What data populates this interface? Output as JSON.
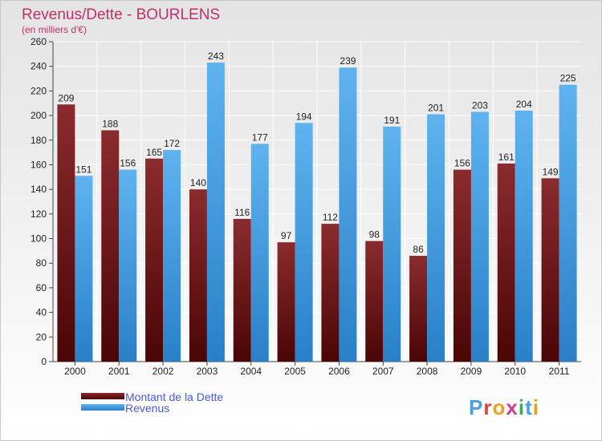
{
  "chart_data": {
    "type": "bar",
    "title": "Revenus/Dette - BOURLENS",
    "subtitle": "(en milliers d'€)",
    "categories": [
      "2000",
      "2001",
      "2002",
      "2003",
      "2004",
      "2005",
      "2006",
      "2007",
      "2008",
      "2009",
      "2010",
      "2011"
    ],
    "series": [
      {
        "name": "Montant de la Dette",
        "values": [
          209,
          188,
          165,
          140,
          116,
          97,
          112,
          98,
          86,
          156,
          161,
          149
        ],
        "color": "#7a1c1c"
      },
      {
        "name": "Revenus",
        "values": [
          151,
          156,
          172,
          243,
          177,
          194,
          239,
          191,
          201,
          203,
          204,
          225
        ],
        "color": "#45a2e6"
      }
    ],
    "ylim": [
      0,
      260
    ],
    "yticks": [
      0,
      20,
      40,
      60,
      80,
      100,
      120,
      140,
      160,
      180,
      200,
      220,
      240,
      260
    ],
    "grid": true,
    "legend_position": "bottom-left"
  },
  "branding": {
    "logo_text": "Proxiti"
  }
}
